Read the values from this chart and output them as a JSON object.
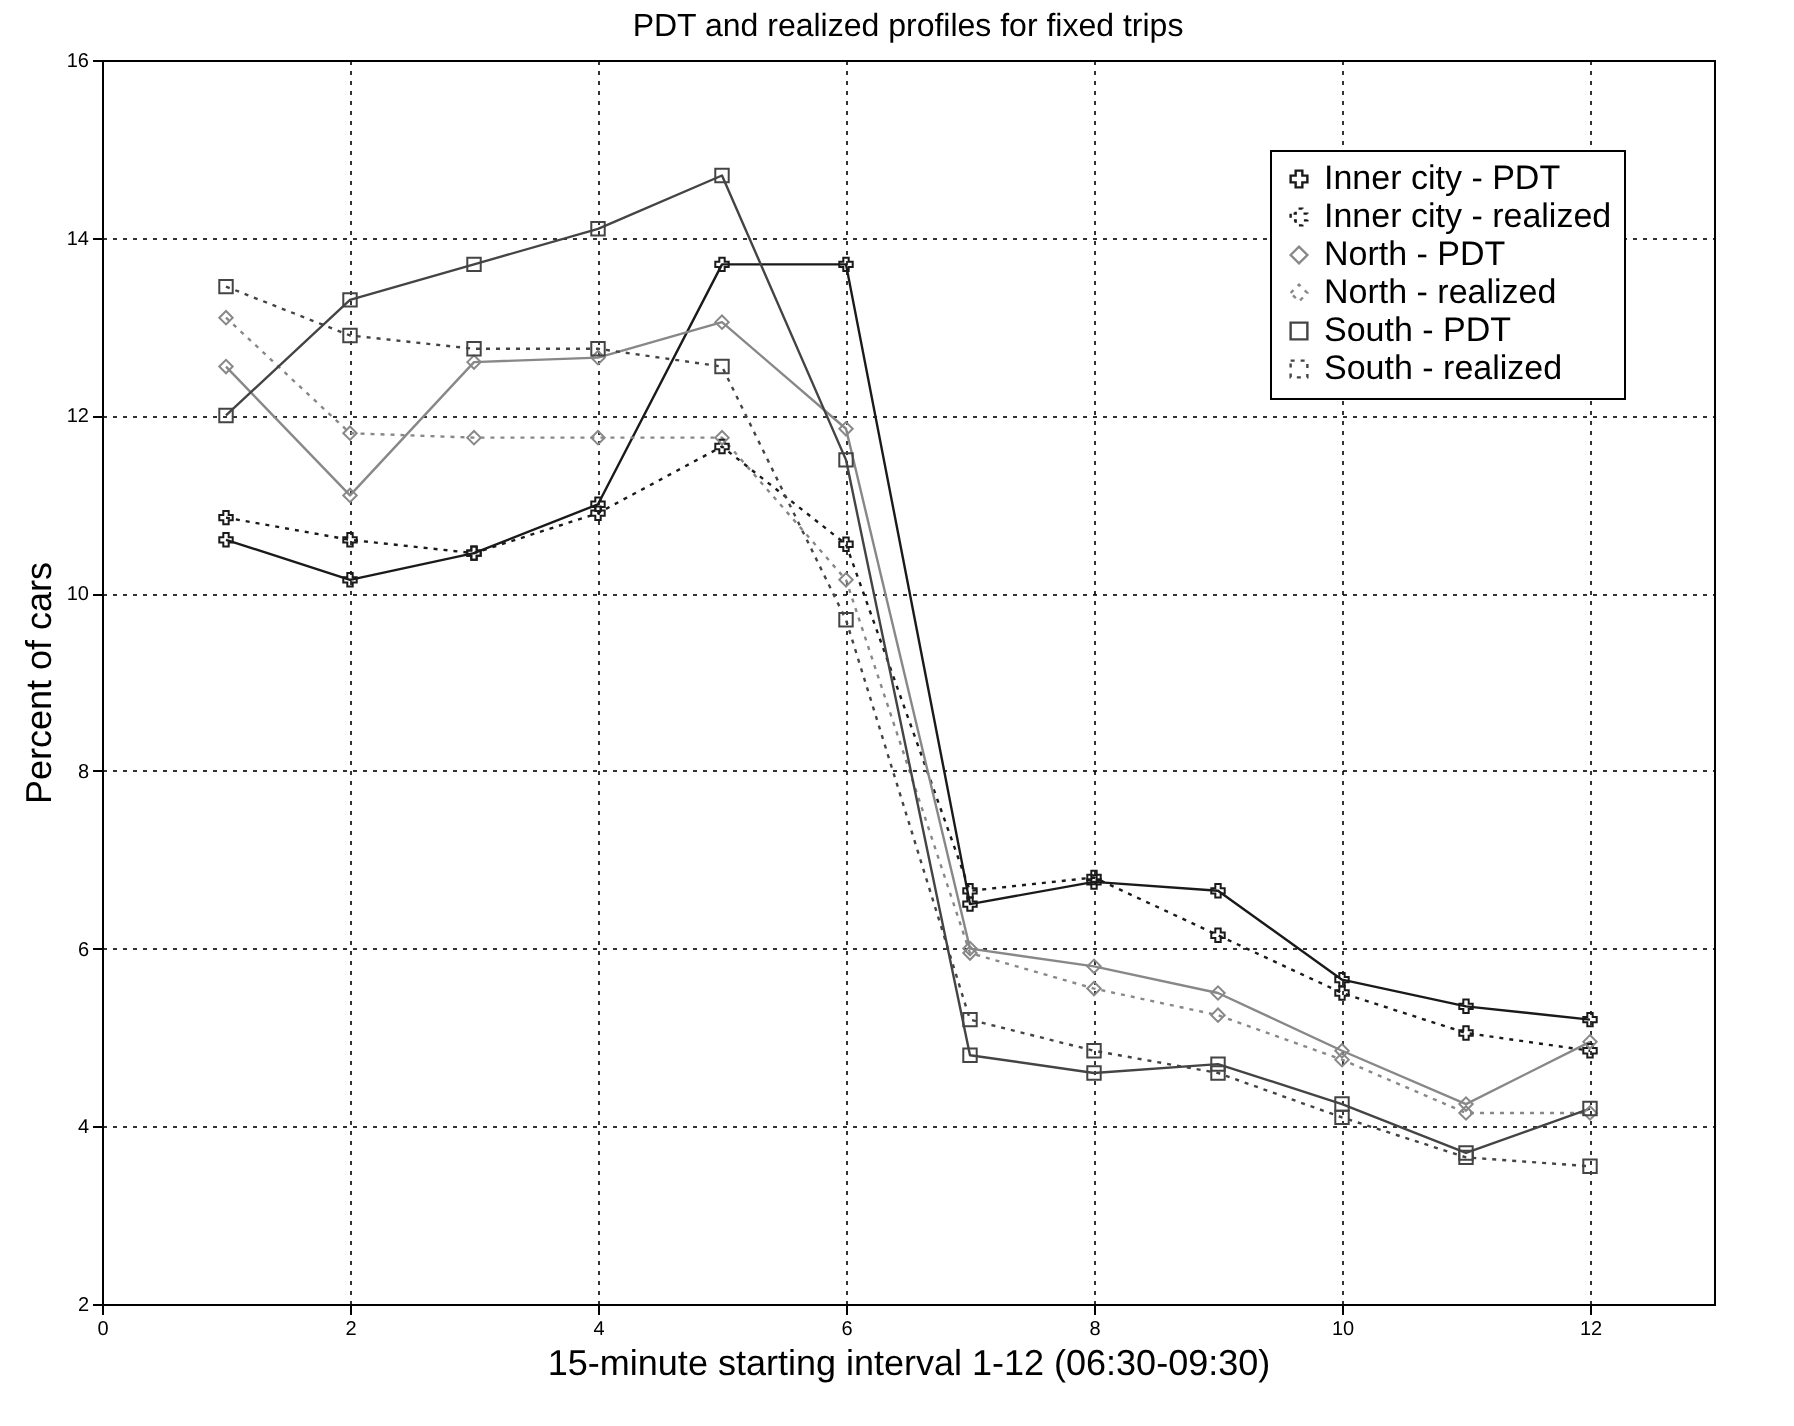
{
  "chart_data": {
    "type": "line",
    "title": "PDT and realized profiles for fixed trips",
    "xlabel": "15-minute starting interval 1-12 (06:30-09:30)",
    "ylabel": "Percent of cars",
    "x": [
      1,
      2,
      3,
      4,
      5,
      6,
      7,
      8,
      9,
      10,
      11,
      12
    ],
    "xlim": [
      0,
      13
    ],
    "xticks": [
      0,
      2,
      4,
      6,
      8,
      10,
      12
    ],
    "ylim": [
      2,
      16
    ],
    "yticks": [
      2,
      4,
      6,
      8,
      10,
      12,
      14,
      16
    ],
    "grid": true,
    "legend": "top right",
    "series": [
      {
        "name": "Inner city - PDT",
        "color": "#1a1a1a",
        "marker": "cross",
        "line_style": "solid",
        "values": [
          10.6,
          10.15,
          10.45,
          11.0,
          13.7,
          13.7,
          6.5,
          6.75,
          6.65,
          5.65,
          5.35,
          5.2
        ]
      },
      {
        "name": "Inner city - realized",
        "color": "#1a1a1a",
        "marker": "cross",
        "line_style": "dotted",
        "values": [
          10.85,
          10.6,
          10.45,
          10.9,
          11.65,
          10.55,
          6.65,
          6.8,
          6.15,
          5.5,
          5.05,
          4.85
        ]
      },
      {
        "name": "North - PDT",
        "color": "#888888",
        "marker": "diamond",
        "line_style": "solid",
        "values": [
          12.55,
          11.1,
          12.6,
          12.65,
          13.05,
          11.85,
          6.0,
          5.8,
          5.5,
          4.85,
          4.25,
          4.95
        ]
      },
      {
        "name": "North - realized",
        "color": "#888888",
        "marker": "diamond",
        "line_style": "dotted",
        "values": [
          13.1,
          11.8,
          11.75,
          11.75,
          11.75,
          10.15,
          5.95,
          5.55,
          5.25,
          4.75,
          4.15,
          4.15
        ]
      },
      {
        "name": "South - PDT",
        "color": "#444444",
        "marker": "square",
        "line_style": "solid",
        "values": [
          12.0,
          13.3,
          13.7,
          14.1,
          14.7,
          11.5,
          4.8,
          4.6,
          4.7,
          4.25,
          3.7,
          4.2
        ]
      },
      {
        "name": "South - realized",
        "color": "#444444",
        "marker": "square",
        "line_style": "dotted",
        "values": [
          13.45,
          12.9,
          12.75,
          12.75,
          12.55,
          9.7,
          5.2,
          4.85,
          4.6,
          4.1,
          3.65,
          3.55
        ]
      }
    ]
  }
}
